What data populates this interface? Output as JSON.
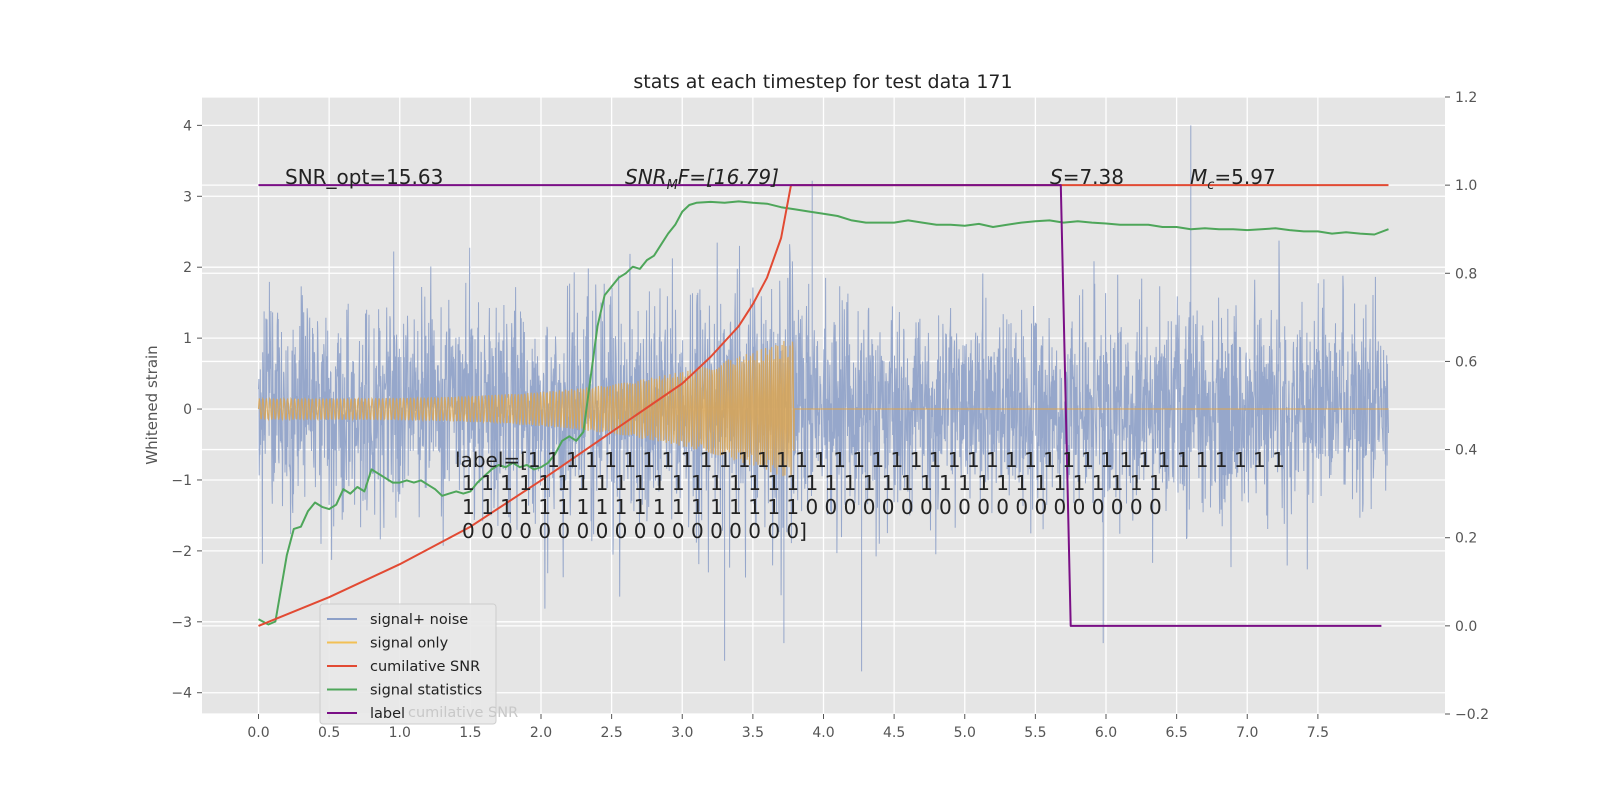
{
  "chart_data": {
    "type": "line",
    "title": "stats at each timestep for test data 171",
    "ylabel": "Whitened strain",
    "x_ticks": [
      "0.0",
      "0.5",
      "1.0",
      "1.5",
      "2.0",
      "2.5",
      "3.0",
      "3.5",
      "4.0",
      "4.5",
      "5.0",
      "5.5",
      "6.0",
      "6.5",
      "7.0",
      "7.5"
    ],
    "y_left_ticks": [
      "4",
      "3",
      "2",
      "1",
      "0",
      "−1",
      "−2",
      "−3",
      "−4"
    ],
    "y_right_ticks": [
      "1.2",
      "1.0",
      "0.8",
      "0.6",
      "0.4",
      "0.2",
      "0.0",
      "−0.2"
    ],
    "xlim": [
      -0.4,
      8.4
    ],
    "ylim_left": [
      -4.3,
      4.4
    ],
    "ylim_right": [
      -0.2,
      1.2
    ],
    "annotations": {
      "snr_opt": "SNR_opt=15.63",
      "snr_mf_main": "SNR",
      "snr_mf_sub": "M",
      "snr_mf_rest": "F=[16.79]",
      "s_main": "S",
      "s_rest": "=7.38",
      "mc_main": "M",
      "mc_sub": "c",
      "mc_rest": "=5.97"
    },
    "label_text": [
      "label=[1 1 1 1 1 1 1 1 1 1 1 1 1 1 1 1 1 1 1 1 1 1 1 1 1 1 1 1 1 1 1 1 1 1 1 1 1 1 1 1",
      "1 1 1 1 1 1 1 1 1 1 1 1 1 1 1 1 1 1 1 1 1 1 1 1 1 1 1 1 1 1 1 1 1 1 1 1 1",
      "1 1 1 1 1 1 1 1 1 1 1 1 1 1 1 1 1 1 0 0 0 0 0 0 0 0 0 0 0 0 0 0 0 0 0 0 0",
      "0 0 0 0 0 0 0 0 0 0 0 0 0 0 0 0 0 0]"
    ],
    "legend": {
      "placement": "lower-left",
      "entries": [
        {
          "name": "signal+ noise",
          "color": "#8da0c8"
        },
        {
          "name": "signal only",
          "color": "#f2c055"
        },
        {
          "name": "cumilative SNR",
          "color": "#e24a33"
        },
        {
          "name": "signal statistics",
          "color": "#4ea65a"
        },
        {
          "name": "label",
          "color": "#7a0f86"
        }
      ],
      "ghost_text": "cumilative SNR"
    },
    "series": [
      {
        "name": "signal+ noise",
        "axis": "left",
        "kind": "noise",
        "x_range": [
          0,
          8.0
        ],
        "std": 0.75,
        "max_abs": 3.2,
        "color": "#8da0c8",
        "spikes": [
          [
            3.3,
            -3.55
          ],
          [
            4.27,
            -3.7
          ],
          [
            6.6,
            4.0
          ],
          [
            5.98,
            -3.3
          ],
          [
            3.72,
            -3.3
          ],
          [
            3.92,
            3.22
          ]
        ]
      },
      {
        "name": "signal only",
        "axis": "left",
        "kind": "chirp",
        "x_range": [
          0,
          8.0
        ],
        "merger_x": 3.77,
        "amp_start": 0.15,
        "amp_peak": 1.0,
        "color": "#d9a454"
      },
      {
        "name": "cumilative SNR",
        "axis": "right",
        "color": "#e24a33",
        "x": [
          0.0,
          0.5,
          1.0,
          1.5,
          2.0,
          2.5,
          3.0,
          3.2,
          3.4,
          3.5,
          3.6,
          3.7,
          3.77,
          4.5,
          5.5,
          6.5,
          7.5,
          8.0
        ],
        "y": [
          0.0,
          0.065,
          0.14,
          0.225,
          0.33,
          0.44,
          0.55,
          0.61,
          0.68,
          0.73,
          0.79,
          0.88,
          1.0,
          1.0,
          1.0,
          1.0,
          1.0,
          1.0
        ]
      },
      {
        "name": "signal statistics",
        "axis": "right",
        "color": "#4ea65a",
        "x": [
          0.0,
          0.07,
          0.12,
          0.2,
          0.25,
          0.3,
          0.35,
          0.4,
          0.45,
          0.5,
          0.55,
          0.6,
          0.65,
          0.7,
          0.75,
          0.8,
          0.85,
          0.9,
          0.95,
          1.0,
          1.05,
          1.1,
          1.15,
          1.2,
          1.25,
          1.3,
          1.35,
          1.4,
          1.45,
          1.5,
          1.55,
          1.6,
          1.65,
          1.7,
          1.75,
          1.8,
          1.85,
          1.9,
          1.95,
          2.0,
          2.05,
          2.1,
          2.15,
          2.2,
          2.25,
          2.3,
          2.35,
          2.4,
          2.45,
          2.5,
          2.55,
          2.6,
          2.65,
          2.7,
          2.75,
          2.8,
          2.85,
          2.9,
          2.95,
          3.0,
          3.05,
          3.1,
          3.2,
          3.3,
          3.4,
          3.5,
          3.6,
          3.7,
          3.8,
          3.9,
          4.0,
          4.1,
          4.2,
          4.3,
          4.4,
          4.5,
          4.6,
          4.7,
          4.8,
          4.9,
          5.0,
          5.1,
          5.2,
          5.3,
          5.4,
          5.5,
          5.6,
          5.7,
          5.8,
          5.9,
          6.0,
          6.1,
          6.2,
          6.3,
          6.4,
          6.5,
          6.6,
          6.7,
          6.8,
          6.9,
          7.0,
          7.1,
          7.2,
          7.3,
          7.4,
          7.5,
          7.6,
          7.7,
          7.8,
          7.9,
          8.0
        ],
        "y": [
          0.015,
          0.003,
          0.01,
          0.16,
          0.22,
          0.225,
          0.26,
          0.28,
          0.27,
          0.265,
          0.275,
          0.31,
          0.3,
          0.315,
          0.305,
          0.355,
          0.345,
          0.335,
          0.325,
          0.325,
          0.33,
          0.325,
          0.33,
          0.32,
          0.31,
          0.295,
          0.3,
          0.305,
          0.3,
          0.305,
          0.325,
          0.34,
          0.355,
          0.365,
          0.36,
          0.37,
          0.36,
          0.365,
          0.355,
          0.36,
          0.37,
          0.39,
          0.42,
          0.43,
          0.42,
          0.44,
          0.56,
          0.68,
          0.75,
          0.77,
          0.79,
          0.8,
          0.815,
          0.81,
          0.83,
          0.84,
          0.865,
          0.89,
          0.91,
          0.94,
          0.955,
          0.96,
          0.962,
          0.96,
          0.963,
          0.96,
          0.958,
          0.95,
          0.945,
          0.94,
          0.935,
          0.93,
          0.92,
          0.915,
          0.915,
          0.915,
          0.92,
          0.915,
          0.91,
          0.91,
          0.908,
          0.912,
          0.905,
          0.91,
          0.915,
          0.918,
          0.92,
          0.915,
          0.918,
          0.915,
          0.913,
          0.91,
          0.91,
          0.91,
          0.905,
          0.905,
          0.9,
          0.902,
          0.9,
          0.9,
          0.898,
          0.9,
          0.902,
          0.898,
          0.895,
          0.895,
          0.89,
          0.893,
          0.89,
          0.888,
          0.9
        ]
      },
      {
        "name": "label",
        "axis": "right",
        "color": "#7a0f86",
        "x": [
          0.0,
          5.68,
          5.75,
          7.95
        ],
        "y": [
          1.0,
          1.0,
          0.0,
          0.0
        ]
      }
    ]
  }
}
